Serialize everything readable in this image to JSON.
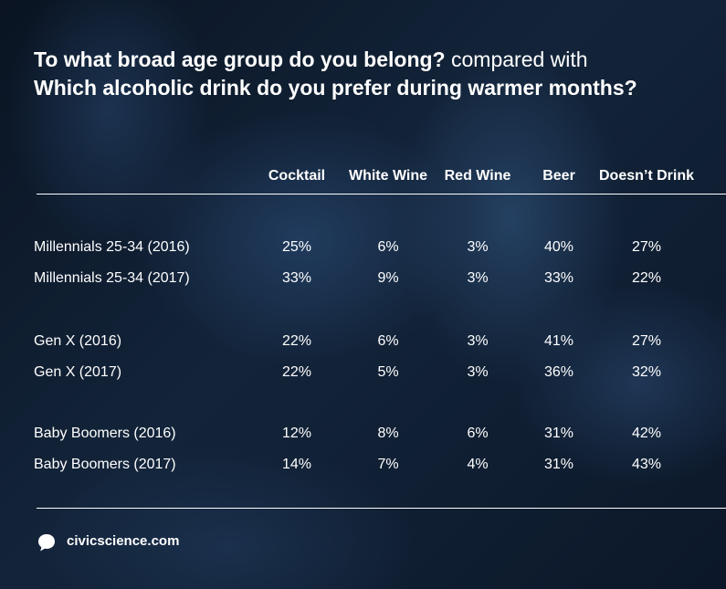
{
  "title_bold_1": "To what broad age group do you belong?",
  "title_connector": " compared with",
  "title_bold_2": "Which alcoholic drink do you prefer during warmer months?",
  "brand": "civicscience.com",
  "logo_icon": "speech-bubble-icon",
  "chart_data": {
    "type": "table",
    "columns": [
      "Cocktail",
      "White Wine",
      "Red Wine",
      "Beer",
      "Doesn’t Drink"
    ],
    "rows": [
      {
        "label": "Millennials 25-34 (2016)",
        "values": [
          "25%",
          "6%",
          "3%",
          "40%",
          "27%"
        ]
      },
      {
        "label": "Millennials 25-34 (2017)",
        "values": [
          "33%",
          "9%",
          "3%",
          "33%",
          "22%"
        ]
      },
      {
        "label": "Gen X (2016)",
        "values": [
          "22%",
          "6%",
          "3%",
          "41%",
          "27%"
        ]
      },
      {
        "label": "Gen X (2017)",
        "values": [
          "22%",
          "5%",
          "3%",
          "36%",
          "32%"
        ]
      },
      {
        "label": "Baby Boomers (2016)",
        "values": [
          "12%",
          "8%",
          "6%",
          "31%",
          "42%"
        ]
      },
      {
        "label": "Baby Boomers (2017)",
        "values": [
          "14%",
          "7%",
          "4%",
          "31%",
          "43%"
        ]
      }
    ]
  }
}
